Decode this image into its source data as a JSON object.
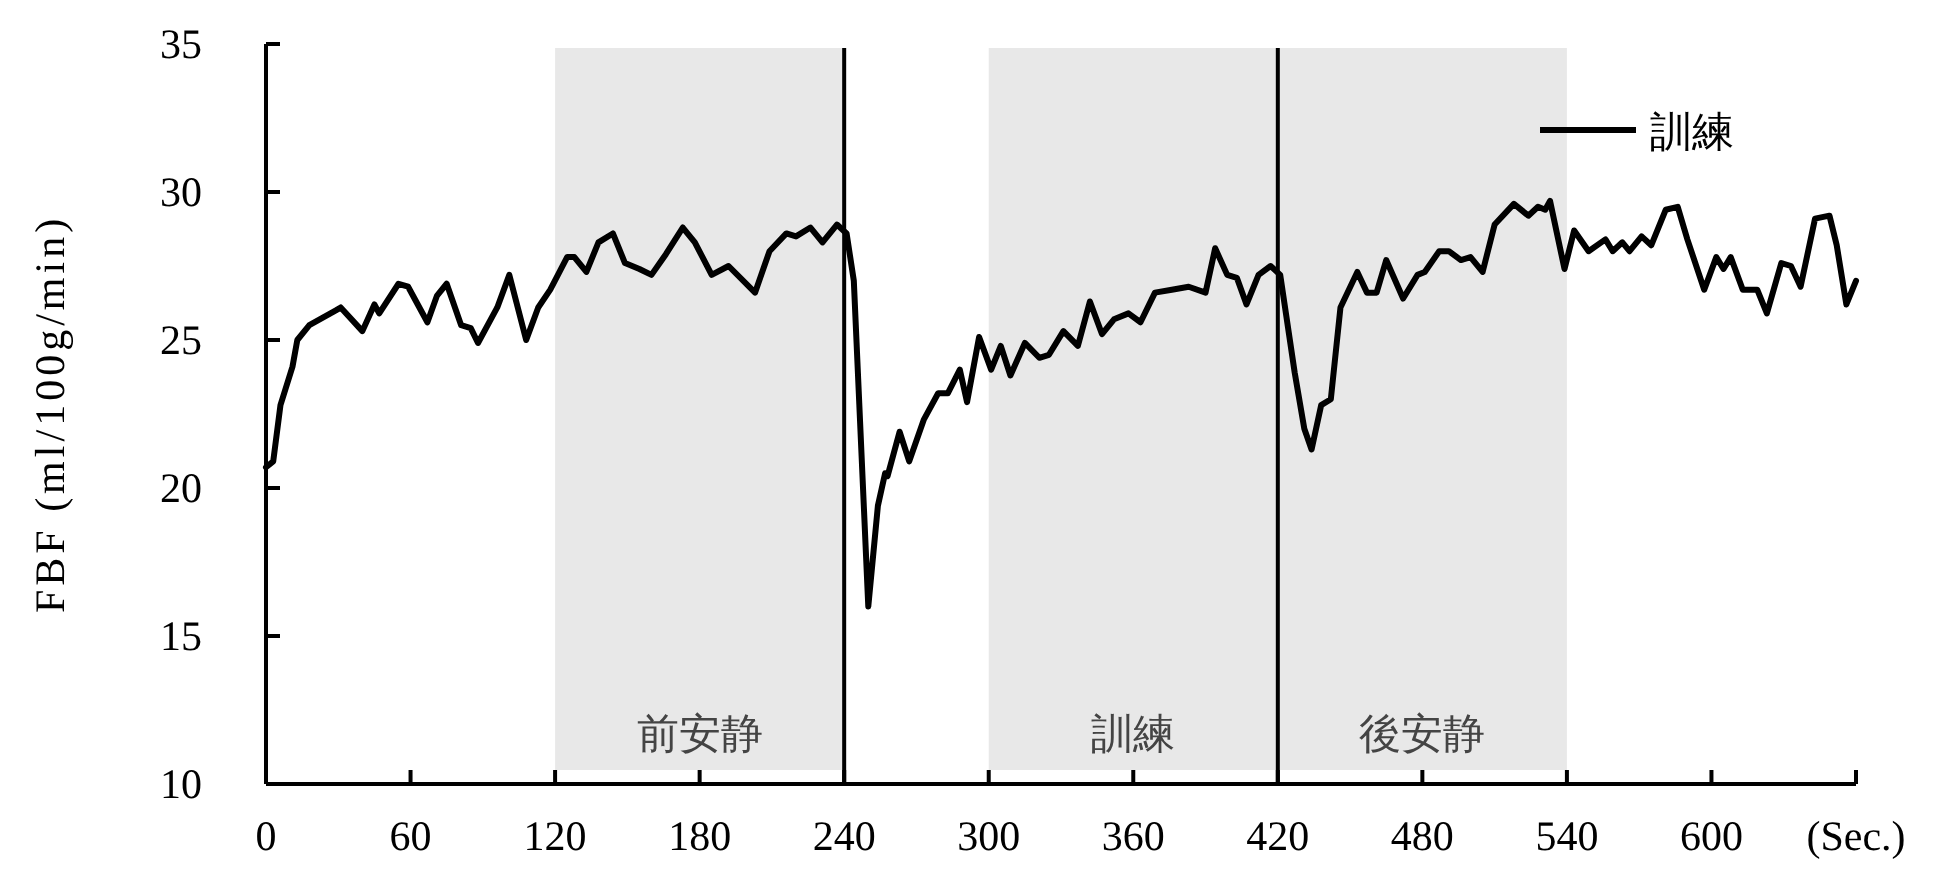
{
  "chart_data": {
    "type": "line",
    "ylabel": "FBF (ml/100g/min)",
    "x": [
      0,
      3,
      6,
      11,
      13,
      18,
      29,
      31,
      40,
      45,
      47,
      55,
      59,
      67,
      71,
      75,
      81,
      85,
      88,
      96,
      101,
      108,
      113,
      118,
      125,
      128,
      133,
      138,
      144,
      149,
      155,
      160,
      166,
      173,
      178,
      185,
      192,
      203,
      209,
      216,
      220,
      226,
      231,
      237,
      241,
      244,
      250,
      254,
      257,
      258,
      263,
      267,
      273,
      279,
      283,
      288,
      291,
      296,
      301,
      305,
      309,
      315,
      321,
      325,
      331,
      337,
      342,
      347,
      352,
      358,
      363,
      369,
      376,
      383,
      390,
      394,
      399,
      403,
      407,
      412,
      417,
      421,
      427,
      431,
      434,
      438,
      442,
      446,
      453,
      457,
      461,
      465,
      472,
      478,
      481,
      487,
      491,
      496,
      500,
      505,
      510,
      518,
      524,
      528,
      531,
      533,
      539,
      543,
      549,
      556,
      559,
      563,
      566,
      571,
      575,
      581,
      586,
      590,
      597,
      602,
      605,
      608,
      613,
      619,
      623,
      629,
      633,
      637,
      643,
      649,
      652,
      656,
      660
    ],
    "series": [
      {
        "name": "訓練",
        "color": "#000000",
        "values": [
          20.7,
          20.9,
          22.8,
          24.1,
          25.0,
          25.5,
          26.0,
          26.1,
          25.3,
          26.2,
          25.9,
          26.9,
          26.8,
          25.6,
          26.5,
          26.9,
          25.5,
          25.4,
          24.9,
          26.1,
          27.2,
          25.0,
          26.1,
          26.7,
          27.8,
          27.8,
          27.3,
          28.3,
          28.6,
          27.6,
          27.4,
          27.2,
          27.9,
          28.8,
          28.3,
          27.2,
          27.5,
          26.6,
          28.0,
          28.6,
          28.5,
          28.8,
          28.3,
          28.9,
          28.6,
          27.0,
          16.0,
          19.4,
          20.5,
          20.4,
          21.9,
          20.9,
          22.3,
          23.2,
          23.2,
          24.0,
          22.9,
          25.1,
          24.0,
          24.8,
          23.8,
          24.9,
          24.4,
          24.5,
          25.3,
          24.8,
          26.3,
          25.2,
          25.7,
          25.9,
          25.6,
          26.6,
          26.7,
          26.8,
          26.6,
          28.1,
          27.2,
          27.1,
          26.2,
          27.2,
          27.5,
          27.2,
          23.9,
          22.0,
          21.3,
          22.8,
          23.0,
          26.1,
          27.3,
          26.6,
          26.6,
          27.7,
          26.4,
          27.2,
          27.3,
          28.0,
          28.0,
          27.7,
          27.8,
          27.3,
          28.9,
          29.6,
          29.2,
          29.5,
          29.4,
          29.7,
          27.4,
          28.7,
          28.0,
          28.4,
          28.0,
          28.3,
          28.0,
          28.5,
          28.2,
          29.4,
          29.5,
          28.4,
          26.7,
          27.8,
          27.4,
          27.8,
          26.7,
          26.7,
          25.9,
          27.6,
          27.5,
          26.8,
          29.1,
          29.2,
          28.2,
          26.2,
          27.0
        ]
      }
    ],
    "xlim": [
      0,
      660
    ],
    "ylim": [
      10,
      35
    ],
    "xticks": [
      0,
      60,
      120,
      180,
      240,
      300,
      360,
      420,
      480,
      540,
      600,
      {
        "value": 660,
        "label": "(Sec.)"
      }
    ],
    "yticks": [
      10,
      15,
      20,
      25,
      30,
      35
    ],
    "bands": [
      {
        "axis": "x",
        "from": 120,
        "to": 240,
        "label": "前安静",
        "color": "#e8e8e8"
      },
      {
        "axis": "x",
        "from": 300,
        "to": 420,
        "label": "訓練",
        "color": "#e8e8e8"
      },
      {
        "axis": "x",
        "from": 420,
        "to": 540,
        "label": "後安静",
        "color": "#e8e8e8"
      }
    ],
    "ref_lines": [
      {
        "axis": "x",
        "value": 240,
        "color": "#000000"
      },
      {
        "axis": "x",
        "value": 420,
        "color": "#000000"
      }
    ],
    "legend": "top right",
    "grid": false,
    "marker": "none",
    "line_style": "solid"
  }
}
